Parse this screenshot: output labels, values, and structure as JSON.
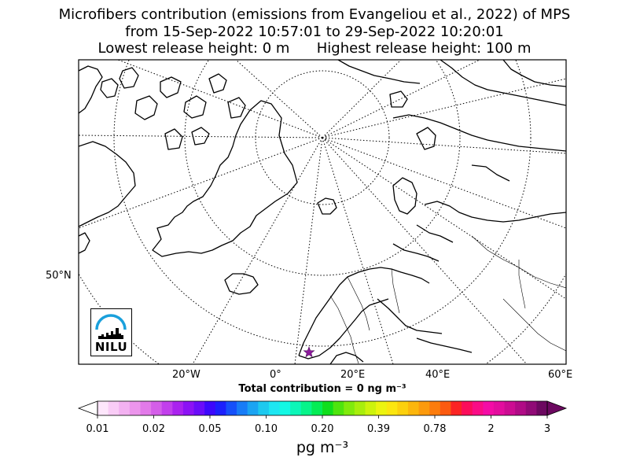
{
  "title": {
    "line1": "Microfibers contribution (emissions from Evangeliou et al., 2022) of MPS",
    "line2": "from 15-Sep-2022 10:57:01 to 29-Sep-2022 10:20:01",
    "line3": "Lowest release height: 0 m      Highest release height: 100 m"
  },
  "map": {
    "lat_label": "50°N",
    "lon_labels": [
      "20°W",
      "0°",
      "20°E",
      "40°E",
      "60°E"
    ],
    "release_marker": "star-icon",
    "marker_color": "#8e1a9e"
  },
  "logo": {
    "text": "NILU",
    "arc_color": "#1aa0dc"
  },
  "total_contribution": "Total contribution = 0 ng m⁻³",
  "colorbar": {
    "tick_labels": [
      "0.01",
      "0.02",
      "0.05",
      "0.10",
      "0.20",
      "0.39",
      "0.78",
      "2",
      "3"
    ],
    "units": "pg m⁻³",
    "colors": [
      "#fde6fb",
      "#f9ccf6",
      "#f3b1f1",
      "#ec95ec",
      "#e27ae9",
      "#d45ee9",
      "#c23fec",
      "#aa22ef",
      "#8c12f5",
      "#6a0cf9",
      "#3c08fc",
      "#1c20fd",
      "#1650fa",
      "#187cf7",
      "#1ba4f2",
      "#1dc9ef",
      "#1de6f2",
      "#13f8e4",
      "#0cf6b8",
      "#07f48a",
      "#04ec54",
      "#10de1c",
      "#4ee40e",
      "#80ea0c",
      "#a8ee0c",
      "#cdf30c",
      "#ecf40f",
      "#fbe60f",
      "#fcd00d",
      "#fcb60c",
      "#fc9a0c",
      "#fc7c0c",
      "#fb5a10",
      "#fb2424",
      "#fb0d5a",
      "#fa0c86",
      "#f40ca6",
      "#e30d9e",
      "#cc0c92",
      "#b00b86",
      "#900a76",
      "#6c0860"
    ]
  }
}
